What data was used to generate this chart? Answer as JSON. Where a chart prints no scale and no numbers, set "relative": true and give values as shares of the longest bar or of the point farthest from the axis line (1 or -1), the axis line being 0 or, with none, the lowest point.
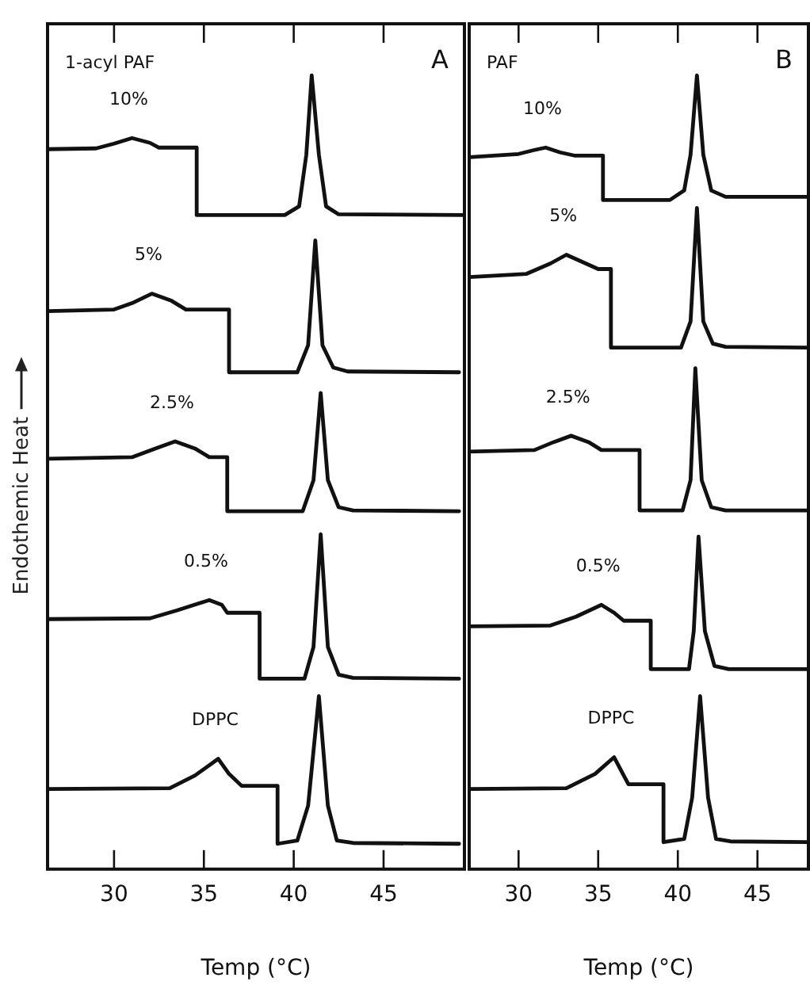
{
  "chart_data": [
    {
      "type": "line",
      "title": "1-acyl PAF",
      "annotations": [
        "A"
      ],
      "xlabel": "Temp (°C)",
      "ylabel": "Endothemic Heat",
      "relative": true,
      "xlim": [
        26.3,
        49.5
      ],
      "xticks": [
        30,
        35,
        40,
        45
      ],
      "grid": false,
      "legend": false,
      "marker": "none",
      "line_style": "solid",
      "series": [
        {
          "name": "10%",
          "color": "#111111",
          "x": [
            26.3,
            29,
            30,
            31,
            32,
            32.5,
            34.6,
            34.6,
            39.5,
            40.3,
            40.7,
            41.0,
            41.4,
            41.8,
            42.5,
            49.5
          ],
          "values": [
            0.907,
            0.908,
            0.914,
            0.921,
            0.915,
            0.909,
            0.909,
            0.824,
            0.824,
            0.835,
            0.9,
            1.0,
            0.9,
            0.835,
            0.825,
            0.824
          ]
        },
        {
          "name": "5%",
          "color": "#111111",
          "x": [
            26.3,
            30,
            31,
            32.1,
            33.2,
            34,
            36.4,
            36.4,
            40.2,
            40.8,
            41.2,
            41.6,
            42.2,
            43,
            49.2
          ],
          "values": [
            0.703,
            0.705,
            0.713,
            0.725,
            0.716,
            0.705,
            0.705,
            0.626,
            0.626,
            0.66,
            0.792,
            0.66,
            0.632,
            0.627,
            0.626
          ]
        },
        {
          "name": "2.5%",
          "color": "#111111",
          "x": [
            26.3,
            31,
            32.3,
            33.4,
            34.5,
            35.3,
            36.3,
            36.3,
            40.5,
            41.1,
            41.5,
            41.9,
            42.5,
            43.3,
            49.2
          ],
          "values": [
            0.517,
            0.519,
            0.53,
            0.539,
            0.53,
            0.519,
            0.519,
            0.451,
            0.451,
            0.49,
            0.6,
            0.49,
            0.456,
            0.452,
            0.451
          ]
        },
        {
          "name": "0.5%",
          "color": "#111111",
          "x": [
            26.3,
            32,
            33.5,
            35.3,
            36,
            36.3,
            38.1,
            38.1,
            40.6,
            41.1,
            41.5,
            41.9,
            42.5,
            43.3,
            49.2
          ],
          "values": [
            0.315,
            0.316,
            0.326,
            0.339,
            0.333,
            0.323,
            0.323,
            0.24,
            0.24,
            0.28,
            0.422,
            0.28,
            0.245,
            0.241,
            0.24
          ]
        },
        {
          "name": "DPPC",
          "color": "#111111",
          "x": [
            26.3,
            33.1,
            34.5,
            35.8,
            36.4,
            37.1,
            39.1,
            39.1,
            40.2,
            40.8,
            41.4,
            41.9,
            42.4,
            43.3,
            49.2
          ],
          "values": [
            0.101,
            0.102,
            0.118,
            0.139,
            0.12,
            0.105,
            0.105,
            0.032,
            0.036,
            0.08,
            0.218,
            0.08,
            0.036,
            0.033,
            0.032
          ]
        }
      ]
    },
    {
      "type": "line",
      "title": "PAF",
      "annotations": [
        "B"
      ],
      "xlabel": "Temp (°C)",
      "relative": true,
      "xlim": [
        26.9,
        48.2
      ],
      "xticks": [
        30,
        35,
        40,
        45
      ],
      "grid": false,
      "legend": false,
      "marker": "none",
      "line_style": "solid",
      "series": [
        {
          "name": "10%",
          "color": "#111111",
          "x": [
            26.9,
            30,
            31,
            31.7,
            32.6,
            33.5,
            35.3,
            35.3,
            39.5,
            40.4,
            40.8,
            41.2,
            41.6,
            42.1,
            43,
            48.2
          ],
          "values": [
            0.897,
            0.901,
            0.906,
            0.909,
            0.903,
            0.899,
            0.899,
            0.843,
            0.843,
            0.855,
            0.9,
            1.0,
            0.9,
            0.855,
            0.847,
            0.847
          ]
        },
        {
          "name": "5%",
          "color": "#111111",
          "x": [
            26.9,
            30.5,
            32,
            33,
            34,
            35,
            35.8,
            35.8,
            40.2,
            40.8,
            41.2,
            41.6,
            42.2,
            43,
            48.2
          ],
          "values": [
            0.746,
            0.75,
            0.763,
            0.774,
            0.765,
            0.756,
            0.756,
            0.657,
            0.657,
            0.69,
            0.833,
            0.69,
            0.662,
            0.658,
            0.657
          ]
        },
        {
          "name": "2.5%",
          "color": "#111111",
          "x": [
            26.9,
            31,
            32.2,
            33.3,
            34.4,
            35.2,
            37.6,
            37.6,
            40.3,
            40.8,
            41.1,
            41.5,
            42.1,
            43,
            48.2
          ],
          "values": [
            0.526,
            0.528,
            0.538,
            0.546,
            0.538,
            0.528,
            0.528,
            0.452,
            0.452,
            0.49,
            0.631,
            0.49,
            0.456,
            0.452,
            0.452
          ]
        },
        {
          "name": "0.5%",
          "color": "#111111",
          "x": [
            26.9,
            32,
            33.6,
            35.2,
            36,
            36.6,
            38.3,
            38.3,
            40.7,
            41.0,
            41.3,
            41.7,
            42.3,
            43.2,
            48.2
          ],
          "values": [
            0.306,
            0.307,
            0.318,
            0.333,
            0.323,
            0.313,
            0.313,
            0.252,
            0.252,
            0.3,
            0.419,
            0.3,
            0.256,
            0.252,
            0.252
          ]
        },
        {
          "name": "DPPC",
          "color": "#111111",
          "x": [
            26.9,
            33,
            34.8,
            36.0,
            36.5,
            36.9,
            39.1,
            39.1,
            40.4,
            40.9,
            41.4,
            41.9,
            42.4,
            43.3,
            48.2
          ],
          "values": [
            0.101,
            0.102,
            0.12,
            0.141,
            0.122,
            0.107,
            0.107,
            0.034,
            0.038,
            0.09,
            0.218,
            0.09,
            0.038,
            0.035,
            0.034
          ]
        }
      ]
    }
  ]
}
